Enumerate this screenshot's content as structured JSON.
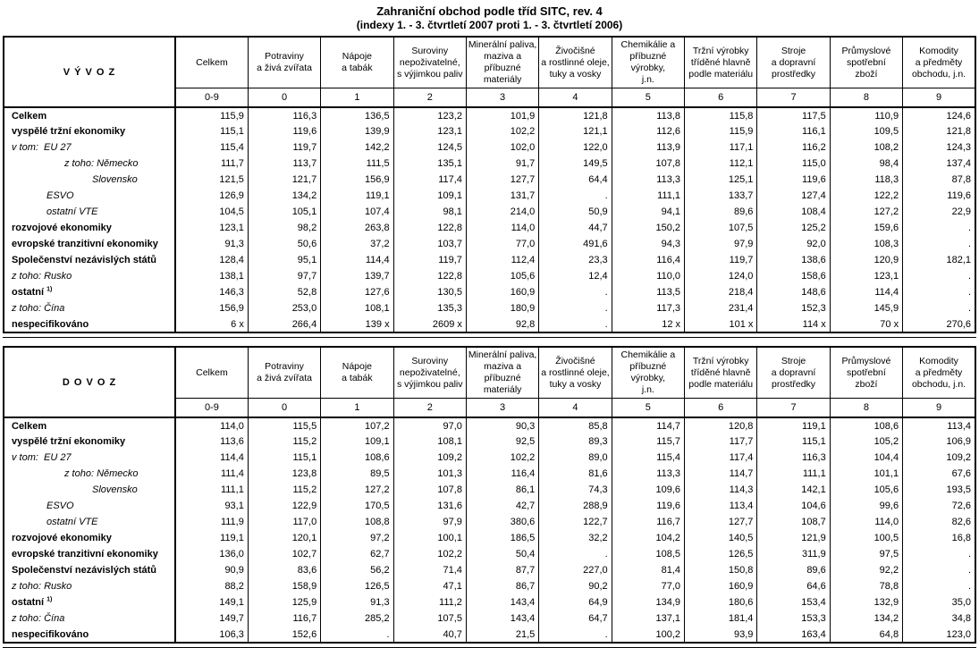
{
  "page": {
    "title": "Zahraniční obchod podle tříd SITC, rev. 4",
    "subtitle": "(indexy 1. - 3. čtvrtletí 2007 proti 1. - 3. čtvrtletí 2006)"
  },
  "columns": [
    {
      "name": "Celkem",
      "code": "0-9"
    },
    {
      "name": "Potraviny\na živá zvířata",
      "code": "0"
    },
    {
      "name": "Nápoje\na tabák",
      "code": "1"
    },
    {
      "name": "Suroviny\nnepoživatelné,\ns výjimkou paliv",
      "code": "2"
    },
    {
      "name": "Minerální paliva,\nmaziva a příbuzné\nmateriály",
      "code": "3"
    },
    {
      "name": "Živočišné\na rostlinné oleje,\ntuky a vosky",
      "code": "4"
    },
    {
      "name": "Chemikálie a\npříbuzné výrobky,\nj.n.",
      "code": "5"
    },
    {
      "name": "Tržní výrobky\ntříděné hlavně\npodle materiálu",
      "code": "6"
    },
    {
      "name": "Stroje\na dopravní\nprostředky",
      "code": "7"
    },
    {
      "name": "Průmyslové\nspotřební\nzboží",
      "code": "8"
    },
    {
      "name": "Komodity\na předměty\nobchodu, j.n.",
      "code": "9"
    }
  ],
  "tables": [
    {
      "id": "vyvoz",
      "title": "V Ý V O Z",
      "rows": [
        {
          "label": "Celkem",
          "style": "b",
          "indent": 0,
          "values": [
            "115,9",
            "116,3",
            "136,5",
            "123,2",
            "101,9",
            "121,8",
            "113,8",
            "115,8",
            "117,5",
            "110,9",
            "124,6"
          ]
        },
        {
          "label": "vyspělé tržní ekonomiky",
          "style": "b",
          "indent": 0,
          "values": [
            "115,1",
            "119,6",
            "139,9",
            "123,1",
            "102,2",
            "121,1",
            "112,6",
            "115,9",
            "116,1",
            "109,5",
            "121,8"
          ]
        },
        {
          "label": "v tom:  EU 27",
          "style": "i",
          "indent": 0,
          "values": [
            "115,4",
            "119,7",
            "142,2",
            "124,5",
            "102,0",
            "122,0",
            "113,9",
            "117,1",
            "116,2",
            "108,2",
            "124,3"
          ]
        },
        {
          "label": "z toho: Německo",
          "style": "i",
          "indent": 2,
          "values": [
            "111,7",
            "113,7",
            "111,5",
            "135,1",
            "91,7",
            "149,5",
            "107,8",
            "112,1",
            "115,0",
            "98,4",
            "137,4"
          ]
        },
        {
          "label": "Slovensko",
          "style": "i",
          "indent": 3,
          "values": [
            "121,5",
            "121,7",
            "156,9",
            "117,4",
            "127,7",
            "64,4",
            "113,3",
            "125,1",
            "119,6",
            "118,3",
            "87,8"
          ]
        },
        {
          "label": "ESVO",
          "style": "i",
          "indent": 1,
          "values": [
            "126,9",
            "134,2",
            "119,1",
            "109,1",
            "131,7",
            ".",
            "111,1",
            "133,7",
            "127,4",
            "122,2",
            "119,6"
          ]
        },
        {
          "label": "ostatní VTE",
          "style": "i",
          "indent": 1,
          "values": [
            "104,5",
            "105,1",
            "107,4",
            "98,1",
            "214,0",
            "50,9",
            "94,1",
            "89,6",
            "108,4",
            "127,2",
            "22,9"
          ]
        },
        {
          "label": "rozvojové ekonomiky",
          "style": "b",
          "indent": 0,
          "values": [
            "123,1",
            "98,2",
            "263,8",
            "122,8",
            "114,0",
            "44,7",
            "150,2",
            "107,5",
            "125,2",
            "159,6",
            "."
          ]
        },
        {
          "label": "evropské tranzitivní ekonomiky",
          "style": "b",
          "indent": 0,
          "values": [
            "91,3",
            "50,6",
            "37,2",
            "103,7",
            "77,0",
            "491,6",
            "94,3",
            "97,9",
            "92,0",
            "108,3",
            "."
          ]
        },
        {
          "label": "Společenství nezávislých států",
          "style": "b",
          "indent": 0,
          "values": [
            "128,4",
            "95,1",
            "114,4",
            "119,7",
            "112,4",
            "23,3",
            "116,4",
            "119,7",
            "138,6",
            "120,9",
            "182,1"
          ]
        },
        {
          "label": "z toho: Rusko",
          "style": "i",
          "indent": 0,
          "values": [
            "138,1",
            "97,7",
            "139,7",
            "122,8",
            "105,6",
            "12,4",
            "110,0",
            "124,0",
            "158,6",
            "123,1",
            "."
          ]
        },
        {
          "label": "ostatní ",
          "sup": "1)",
          "style": "b",
          "indent": 0,
          "values": [
            "146,3",
            "52,8",
            "127,6",
            "130,5",
            "160,9",
            ".",
            "113,5",
            "218,4",
            "148,6",
            "114,4",
            "."
          ]
        },
        {
          "label": "z toho: Čína",
          "style": "i",
          "indent": 0,
          "values": [
            "156,9",
            "253,0",
            "108,1",
            "135,3",
            "180,9",
            ".",
            "117,3",
            "231,4",
            "152,3",
            "145,9",
            "."
          ]
        },
        {
          "label": "nespecifikováno",
          "style": "b",
          "indent": 0,
          "values": [
            "6 x",
            "266,4",
            "139 x",
            "2609 x",
            "92,8",
            ".",
            "12 x",
            "101 x",
            "114 x",
            "70 x",
            "270,6"
          ]
        }
      ]
    },
    {
      "id": "dovoz",
      "title": "D O V O Z",
      "rows": [
        {
          "label": "Celkem",
          "style": "b",
          "indent": 0,
          "values": [
            "114,0",
            "115,5",
            "107,2",
            "97,0",
            "90,3",
            "85,8",
            "114,7",
            "120,8",
            "119,1",
            "108,6",
            "113,4"
          ]
        },
        {
          "label": "vyspělé tržní ekonomiky",
          "style": "b",
          "indent": 0,
          "values": [
            "113,6",
            "115,2",
            "109,1",
            "108,1",
            "92,5",
            "89,3",
            "115,7",
            "117,7",
            "115,1",
            "105,2",
            "106,9"
          ]
        },
        {
          "label": "v tom:  EU 27",
          "style": "i",
          "indent": 0,
          "values": [
            "114,4",
            "115,1",
            "108,6",
            "109,2",
            "102,2",
            "89,0",
            "115,4",
            "117,4",
            "116,3",
            "104,4",
            "109,2"
          ]
        },
        {
          "label": "z toho: Německo",
          "style": "i",
          "indent": 2,
          "values": [
            "111,4",
            "123,8",
            "89,5",
            "101,3",
            "116,4",
            "81,6",
            "113,3",
            "114,7",
            "111,1",
            "101,1",
            "67,6"
          ]
        },
        {
          "label": "Slovensko",
          "style": "i",
          "indent": 3,
          "values": [
            "111,1",
            "115,2",
            "127,2",
            "107,8",
            "86,1",
            "74,3",
            "109,6",
            "114,3",
            "142,1",
            "105,6",
            "193,5"
          ]
        },
        {
          "label": "ESVO",
          "style": "i",
          "indent": 1,
          "values": [
            "93,1",
            "122,9",
            "170,5",
            "131,6",
            "42,7",
            "288,9",
            "119,6",
            "113,4",
            "104,6",
            "99,6",
            "72,6"
          ]
        },
        {
          "label": "ostatní VTE",
          "style": "i",
          "indent": 1,
          "values": [
            "111,9",
            "117,0",
            "108,8",
            "97,9",
            "380,6",
            "122,7",
            "116,7",
            "127,7",
            "108,7",
            "114,0",
            "82,6"
          ]
        },
        {
          "label": "rozvojové ekonomiky",
          "style": "b",
          "indent": 0,
          "values": [
            "119,1",
            "120,1",
            "97,2",
            "100,1",
            "186,5",
            "32,2",
            "104,2",
            "140,5",
            "121,9",
            "100,5",
            "16,8"
          ]
        },
        {
          "label": "evropské tranzitivní ekonomiky",
          "style": "b",
          "indent": 0,
          "values": [
            "136,0",
            "102,7",
            "62,7",
            "102,2",
            "50,4",
            ".",
            "108,5",
            "126,5",
            "311,9",
            "97,5",
            "."
          ]
        },
        {
          "label": "Společenství nezávislých států",
          "style": "b",
          "indent": 0,
          "values": [
            "90,9",
            "83,6",
            "56,2",
            "71,4",
            "87,7",
            "227,0",
            "81,4",
            "150,8",
            "89,6",
            "92,2",
            "."
          ]
        },
        {
          "label": "z toho: Rusko",
          "style": "i",
          "indent": 0,
          "values": [
            "88,2",
            "158,9",
            "126,5",
            "47,1",
            "86,7",
            "90,2",
            "77,0",
            "160,9",
            "64,6",
            "78,8",
            "."
          ]
        },
        {
          "label": "ostatní ",
          "sup": "1)",
          "style": "b",
          "indent": 0,
          "values": [
            "149,1",
            "125,9",
            "91,3",
            "111,2",
            "143,4",
            "64,9",
            "134,9",
            "180,6",
            "153,4",
            "132,9",
            "35,0"
          ]
        },
        {
          "label": "z toho: Čína",
          "style": "i",
          "indent": 0,
          "values": [
            "149,7",
            "116,7",
            "285,2",
            "107,5",
            "143,4",
            "64,7",
            "137,1",
            "181,4",
            "153,3",
            "134,2",
            "34,8"
          ]
        },
        {
          "label": "nespecifikováno",
          "style": "b",
          "indent": 0,
          "values": [
            "106,3",
            "152,6",
            ".",
            "40,7",
            "21,5",
            ".",
            "100,2",
            "93,9",
            "163,4",
            "64,8",
            "123,0"
          ]
        }
      ]
    }
  ]
}
